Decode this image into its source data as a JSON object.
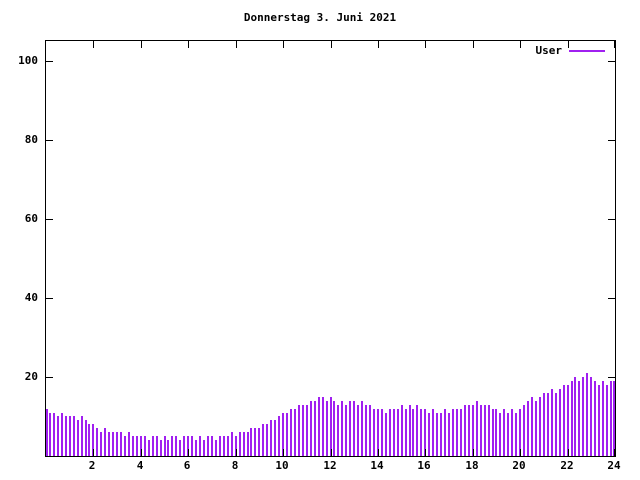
{
  "colors": {
    "series": "#a020f0",
    "axis": "#000000",
    "background": "#ffffff"
  },
  "chart_data": {
    "type": "bar",
    "title": "Donnerstag 3. Juni 2021",
    "series_name": "User",
    "xlabel": "",
    "ylabel": "",
    "x_start_hour": 0,
    "x_end_hour": 24,
    "interval_minutes": 10,
    "xlim": [
      0,
      24
    ],
    "ylim": [
      0,
      105
    ],
    "x_ticks": [
      2,
      4,
      6,
      8,
      10,
      12,
      14,
      16,
      18,
      20,
      22,
      24
    ],
    "y_ticks": [
      20,
      40,
      60,
      80,
      100
    ],
    "grid": false,
    "legend_position": "top-right",
    "values": [
      12,
      11,
      11,
      10,
      11,
      10,
      10,
      10,
      9,
      10,
      9,
      8,
      8,
      7,
      6,
      7,
      6,
      6,
      6,
      6,
      5,
      6,
      5,
      5,
      5,
      5,
      4,
      5,
      5,
      4,
      5,
      4,
      5,
      5,
      4,
      5,
      5,
      5,
      4,
      5,
      4,
      5,
      5,
      4,
      5,
      5,
      5,
      6,
      5,
      6,
      6,
      6,
      7,
      7,
      7,
      8,
      8,
      9,
      9,
      10,
      11,
      11,
      12,
      12,
      13,
      13,
      13,
      14,
      14,
      15,
      15,
      14,
      15,
      14,
      13,
      14,
      13,
      14,
      14,
      13,
      14,
      13,
      13,
      12,
      12,
      12,
      11,
      12,
      12,
      12,
      13,
      12,
      13,
      12,
      13,
      12,
      12,
      11,
      12,
      11,
      11,
      12,
      11,
      12,
      12,
      12,
      13,
      13,
      13,
      14,
      13,
      13,
      13,
      12,
      12,
      11,
      12,
      11,
      12,
      11,
      12,
      13,
      14,
      15,
      14,
      15,
      16,
      16,
      17,
      16,
      17,
      18,
      18,
      19,
      20,
      19,
      20,
      21,
      20,
      19,
      18,
      19,
      18,
      19,
      19
    ]
  }
}
